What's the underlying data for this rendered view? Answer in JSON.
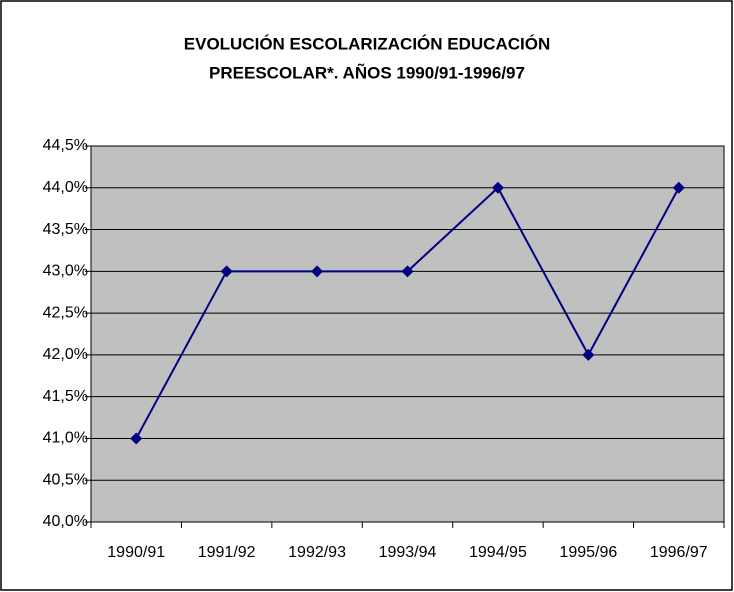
{
  "chart_data": {
    "type": "line",
    "title": [
      "EVOLUCIÓN ESCOLARIZACIÓN EDUCACIÓN",
      "PREESCOLAR*. AÑOS 1990/91-1996/97"
    ],
    "categories": [
      "1990/91",
      "1991/92",
      "1992/93",
      "1993/94",
      "1994/95",
      "1995/96",
      "1996/97"
    ],
    "series": [
      {
        "color": "#000080",
        "values": [
          41.0,
          43.0,
          43.0,
          43.0,
          44.0,
          42.0,
          44.0
        ]
      }
    ],
    "ylim": [
      40.0,
      44.5
    ],
    "yticks": [
      {
        "value": 40.0,
        "label": "40,0%"
      },
      {
        "value": 40.5,
        "label": "40,5%"
      },
      {
        "value": 41.0,
        "label": "41,0%"
      },
      {
        "value": 41.5,
        "label": "41,5%"
      },
      {
        "value": 42.0,
        "label": "42,0%"
      },
      {
        "value": 42.5,
        "label": "42,5%"
      },
      {
        "value": 43.0,
        "label": "43,0%"
      },
      {
        "value": 43.5,
        "label": "43,5%"
      },
      {
        "value": 44.0,
        "label": "44,0%"
      },
      {
        "value": 44.5,
        "label": "44,5%"
      }
    ],
    "grid": true
  }
}
